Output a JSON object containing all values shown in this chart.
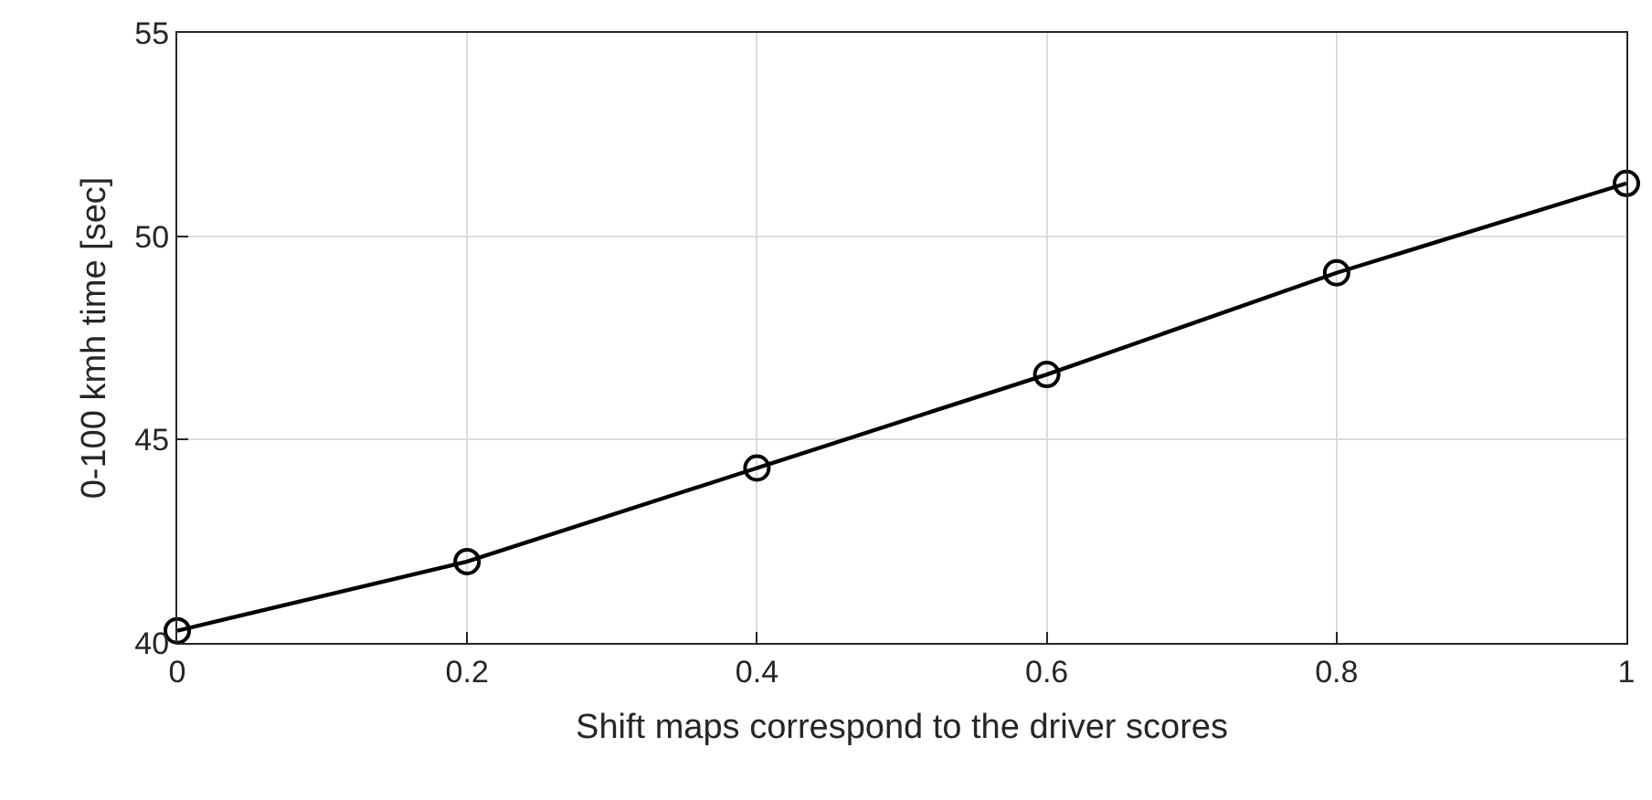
{
  "chart_data": {
    "type": "line",
    "xlabel": "Shift maps correspond to the driver scores",
    "ylabel": "0-100 kmh time [sec]",
    "x": [
      0,
      0.2,
      0.4,
      0.6,
      0.8,
      1
    ],
    "series": [
      {
        "color": "#000000",
        "values": [
          40.3,
          42.0,
          44.3,
          46.6,
          49.1,
          51.3
        ]
      }
    ],
    "xlim": [
      0,
      1
    ],
    "xticks": [
      0,
      0.2,
      0.4,
      0.6,
      0.8,
      1
    ],
    "ylim": [
      40,
      55
    ],
    "yticks": [
      40,
      45,
      50,
      55
    ],
    "grid": true,
    "marker": "circle",
    "line_style": "solid"
  }
}
